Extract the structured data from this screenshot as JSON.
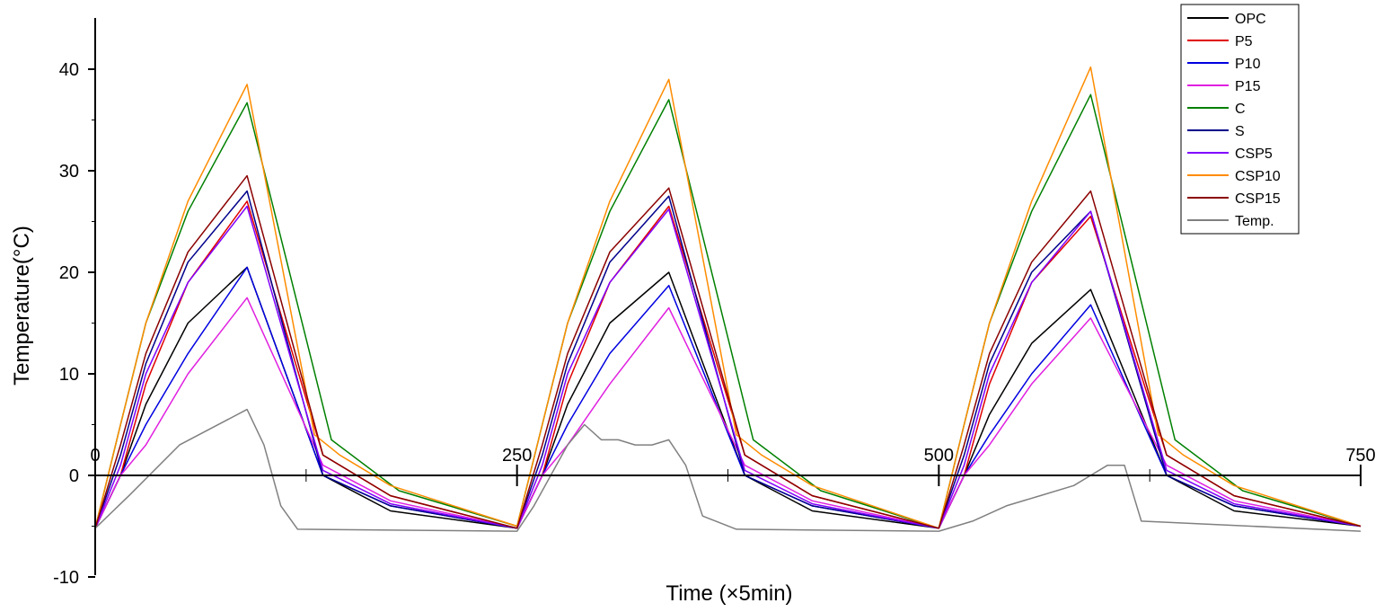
{
  "chart_data": {
    "type": "line",
    "xlabel": "Time (×5min)",
    "ylabel": "Temperature(°C)",
    "xlim": [
      0,
      750
    ],
    "ylim": [
      -10,
      45
    ],
    "x_ticks": [
      0,
      250,
      500,
      750
    ],
    "y_ticks": [
      -10,
      0,
      10,
      20,
      30,
      40
    ],
    "legend_position": "top-right",
    "grid": false,
    "series": [
      {
        "name": "OPC",
        "color": "#000000",
        "x": [
          0,
          15,
          30,
          55,
          90,
          135,
          175,
          250,
          265,
          280,
          305,
          340,
          385,
          425,
          500,
          515,
          530,
          555,
          590,
          635,
          675,
          750
        ],
        "y": [
          -5.2,
          0,
          7,
          15,
          20.5,
          0,
          -3.5,
          -5.2,
          0,
          7,
          15,
          20,
          0,
          -3.5,
          -5.2,
          0,
          6,
          13,
          18.3,
          0,
          -3.5,
          -5
        ]
      },
      {
        "name": "P5",
        "color": "#e00000",
        "x": [
          0,
          15,
          30,
          55,
          90,
          135,
          175,
          250,
          265,
          280,
          305,
          340,
          385,
          425,
          500,
          515,
          530,
          555,
          590,
          635,
          675,
          750
        ],
        "y": [
          -5.2,
          0,
          9,
          19,
          27,
          2,
          -2,
          -5.2,
          0,
          9,
          19,
          26.5,
          2,
          -2,
          -5.2,
          0,
          9,
          19,
          25.5,
          2,
          -2,
          -5
        ]
      },
      {
        "name": "P10",
        "color": "#0000e0",
        "x": [
          0,
          15,
          30,
          55,
          90,
          135,
          175,
          250,
          265,
          280,
          305,
          340,
          385,
          425,
          500,
          515,
          530,
          555,
          590,
          635,
          675,
          750
        ],
        "y": [
          -5.2,
          0,
          5,
          12,
          20.5,
          0,
          -3,
          -5.2,
          0,
          5,
          12,
          18.7,
          0,
          -3,
          -5.2,
          0,
          4,
          10,
          16.8,
          0,
          -3,
          -5
        ]
      },
      {
        "name": "P15",
        "color": "#e020e0",
        "x": [
          0,
          15,
          30,
          55,
          90,
          135,
          175,
          250,
          265,
          280,
          305,
          340,
          385,
          425,
          500,
          515,
          530,
          555,
          590,
          635,
          675,
          750
        ],
        "y": [
          -5.2,
          0,
          3,
          10,
          17.5,
          1,
          -2.5,
          -5.2,
          0,
          3,
          9,
          16.5,
          1,
          -2.5,
          -5.2,
          0,
          3,
          9,
          15.5,
          1,
          -2.5,
          -5
        ]
      },
      {
        "name": "C",
        "color": "#008000",
        "x": [
          0,
          15,
          30,
          55,
          90,
          140,
          180,
          250,
          265,
          280,
          305,
          340,
          390,
          430,
          500,
          515,
          530,
          555,
          590,
          640,
          680,
          750
        ],
        "y": [
          -5.2,
          5,
          15,
          26,
          36.7,
          3.5,
          -1.5,
          -5,
          5,
          15,
          26,
          37,
          3.5,
          -1.5,
          -5.2,
          5,
          15,
          26,
          37.5,
          3.5,
          -1.5,
          -5
        ]
      },
      {
        "name": "S",
        "color": "#00008b",
        "x": [
          0,
          15,
          30,
          55,
          90,
          135,
          175,
          250,
          265,
          280,
          305,
          340,
          385,
          425,
          500,
          515,
          530,
          555,
          590,
          635,
          675,
          750
        ],
        "y": [
          -5.2,
          2,
          11,
          21,
          28,
          0,
          -3,
          -5.2,
          2,
          11,
          21,
          27.5,
          0,
          -3,
          -5.2,
          2,
          11,
          20,
          26,
          0,
          -3,
          -5
        ]
      },
      {
        "name": "CSP5",
        "color": "#8000ff",
        "x": [
          0,
          15,
          30,
          55,
          90,
          135,
          175,
          250,
          265,
          280,
          305,
          340,
          385,
          425,
          500,
          515,
          530,
          555,
          590,
          635,
          675,
          750
        ],
        "y": [
          -5.2,
          1,
          10,
          19,
          26.5,
          0.5,
          -2.8,
          -5.2,
          1,
          10,
          19,
          26.2,
          0.5,
          -2.8,
          -5.2,
          1,
          10,
          19,
          26,
          0.5,
          -2.8,
          -5
        ]
      },
      {
        "name": "CSP10",
        "color": "#ff8c00",
        "x": [
          0,
          15,
          30,
          55,
          90,
          130,
          145,
          175,
          250,
          265,
          280,
          305,
          340,
          380,
          395,
          425,
          500,
          515,
          530,
          555,
          590,
          630,
          645,
          675,
          750
        ],
        "y": [
          -5.2,
          5,
          15,
          27,
          38.5,
          4,
          2,
          -1,
          -5,
          5,
          15,
          27,
          39,
          4,
          2,
          -1,
          -5.2,
          5,
          15,
          27,
          40.2,
          4,
          2,
          -1,
          -5
        ]
      },
      {
        "name": "CSP15",
        "color": "#8b0000",
        "x": [
          0,
          15,
          30,
          55,
          90,
          135,
          175,
          250,
          265,
          280,
          305,
          340,
          385,
          425,
          500,
          515,
          530,
          555,
          590,
          635,
          675,
          750
        ],
        "y": [
          -5.2,
          3,
          12,
          22,
          29.5,
          2,
          -2,
          -5.2,
          3,
          12,
          22,
          28.3,
          2,
          -2,
          -5.2,
          3,
          12,
          21,
          28,
          2,
          -2,
          -5
        ]
      },
      {
        "name": "Temp.",
        "color": "#808080",
        "x": [
          0,
          20,
          50,
          90,
          100,
          110,
          120,
          250,
          260,
          280,
          290,
          300,
          310,
          320,
          330,
          340,
          350,
          360,
          380,
          500,
          520,
          540,
          560,
          580,
          590,
          600,
          610,
          620,
          750
        ],
        "y": [
          -5.2,
          -2,
          3,
          6.5,
          3,
          -3,
          -5.3,
          -5.5,
          -3,
          3,
          5,
          3.5,
          3.5,
          3,
          3,
          3.5,
          1,
          -4,
          -5.3,
          -5.5,
          -4.5,
          -3,
          -2,
          -1,
          0,
          1,
          1,
          -4.5,
          -5.5
        ]
      }
    ]
  }
}
